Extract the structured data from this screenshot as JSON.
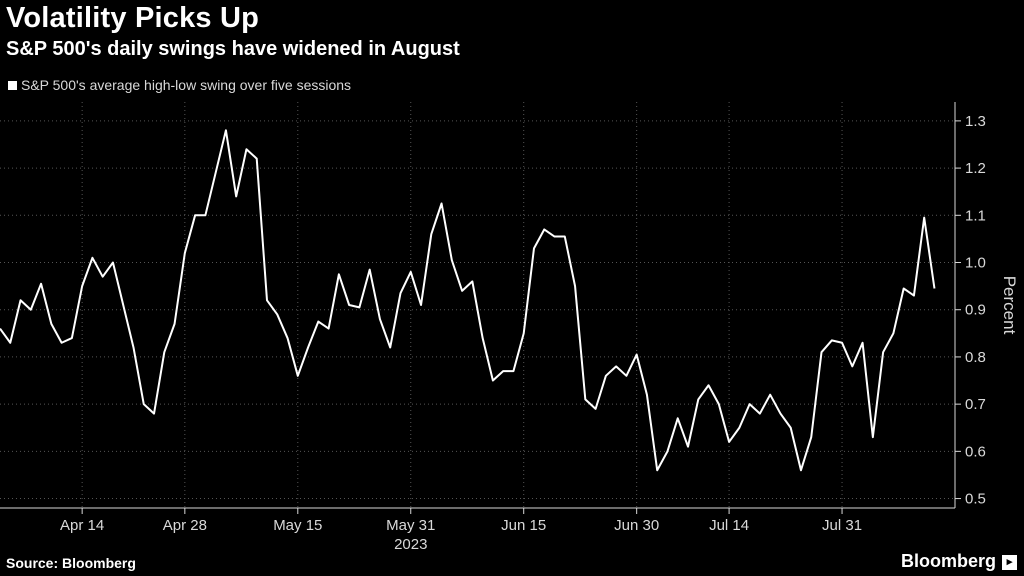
{
  "header": {
    "title": "Volatility Picks Up",
    "subtitle": "S&P 500's daily swings have widened in August"
  },
  "footer": {
    "source": "Source: Bloomberg",
    "brand": "Bloomberg"
  },
  "colors": {
    "background": "#000000",
    "line": "#ffffff",
    "grid": "#555555",
    "text": "#d9d9d9"
  },
  "chart_data": {
    "type": "line",
    "title": "Volatility Picks Up",
    "subtitle": "S&P 500's daily swings have widened in August",
    "xlabel": "2023",
    "ylabel": "Percent",
    "legend": "top-left",
    "grid": true,
    "ylim": [
      0.48,
      1.34
    ],
    "xlim": [
      0,
      93
    ],
    "yticks": [
      0.5,
      0.6,
      0.7,
      0.8,
      0.9,
      1.0,
      1.1,
      1.2,
      1.3
    ],
    "ytick_labels": [
      "0.5",
      "0.6",
      "0.7",
      "0.8",
      "0.9",
      "1.0",
      "1.1",
      "1.2",
      "1.3"
    ],
    "xticks": [
      {
        "label": "Apr 14",
        "x": 8
      },
      {
        "label": "Apr 28",
        "x": 18
      },
      {
        "label": "May 15",
        "x": 29
      },
      {
        "label": "May 31",
        "x": 40
      },
      {
        "label": "Jun 15",
        "x": 51
      },
      {
        "label": "Jun 30",
        "x": 62
      },
      {
        "label": "Jul 14",
        "x": 71
      },
      {
        "label": "Jul 31",
        "x": 82
      }
    ],
    "series": [
      {
        "name": "S&P 500's average high-low swing over five sessions",
        "values": [
          0.86,
          0.83,
          0.92,
          0.9,
          0.955,
          0.87,
          0.83,
          0.84,
          0.95,
          1.01,
          0.97,
          1.0,
          0.91,
          0.82,
          0.7,
          0.68,
          0.81,
          0.87,
          1.02,
          1.1,
          1.1,
          1.19,
          1.28,
          1.14,
          1.24,
          1.22,
          0.92,
          0.89,
          0.84,
          0.76,
          0.82,
          0.875,
          0.86,
          0.975,
          0.91,
          0.905,
          0.985,
          0.88,
          0.82,
          0.935,
          0.98,
          0.91,
          1.06,
          1.125,
          1.005,
          0.94,
          0.96,
          0.84,
          0.75,
          0.77,
          0.77,
          0.85,
          1.03,
          1.07,
          1.055,
          1.055,
          0.95,
          0.71,
          0.69,
          0.76,
          0.78,
          0.76,
          0.805,
          0.72,
          0.56,
          0.6,
          0.67,
          0.61,
          0.71,
          0.74,
          0.7,
          0.62,
          0.65,
          0.7,
          0.68,
          0.72,
          0.68,
          0.65,
          0.56,
          0.63,
          0.81,
          0.835,
          0.83,
          0.78,
          0.83,
          0.63,
          0.81,
          0.85,
          0.945,
          0.93,
          1.095,
          0.945
        ]
      }
    ]
  }
}
